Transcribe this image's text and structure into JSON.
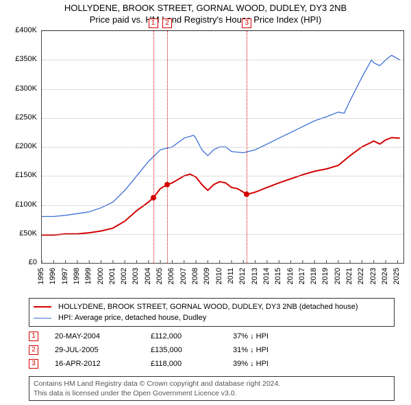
{
  "title": {
    "line1": "HOLLYDENE, BROOK STREET, GORNAL WOOD, DUDLEY, DY3 2NB",
    "line2": "Price paid vs. HM Land Registry's House Price Index (HPI)",
    "fontsize": 13,
    "color": "#000000"
  },
  "chart": {
    "type": "line",
    "background_color": "#ffffff",
    "border_color": "#444444",
    "grid_color": "#bbbbbb",
    "y": {
      "label_color": "#000000",
      "label_fontsize": 11,
      "ylim": [
        0,
        400000
      ],
      "ytick_step": 50000,
      "ticks": [
        "£0",
        "£50K",
        "£100K",
        "£150K",
        "£200K",
        "£250K",
        "£300K",
        "£350K",
        "£400K"
      ]
    },
    "x": {
      "label_color": "#000000",
      "label_fontsize": 11,
      "xlim": [
        1995,
        2025.5
      ],
      "ticks": [
        1995,
        1996,
        1997,
        1998,
        1999,
        2000,
        2001,
        2002,
        2003,
        2004,
        2005,
        2006,
        2007,
        2008,
        2009,
        2010,
        2011,
        2012,
        2013,
        2014,
        2015,
        2016,
        2017,
        2018,
        2019,
        2020,
        2021,
        2022,
        2023,
        2024,
        2025
      ]
    },
    "series": [
      {
        "name": "HOLLYDENE, BROOK STREET, GORNAL WOOD, DUDLEY, DY3 2NB (detached house)",
        "color": "#d40000",
        "line_width": 2.0,
        "data": [
          [
            1995.0,
            48000
          ],
          [
            1996.0,
            48000
          ],
          [
            1997.0,
            50000
          ],
          [
            1998.0,
            50000
          ],
          [
            1999.0,
            52000
          ],
          [
            2000.0,
            55000
          ],
          [
            2001.0,
            60000
          ],
          [
            2002.0,
            72000
          ],
          [
            2003.0,
            90000
          ],
          [
            2004.0,
            105000
          ],
          [
            2004.39,
            112000
          ],
          [
            2005.0,
            128000
          ],
          [
            2005.58,
            135000
          ],
          [
            2006.0,
            138000
          ],
          [
            2007.0,
            150000
          ],
          [
            2007.5,
            153000
          ],
          [
            2008.0,
            148000
          ],
          [
            2008.5,
            135000
          ],
          [
            2009.0,
            125000
          ],
          [
            2009.5,
            135000
          ],
          [
            2010.0,
            140000
          ],
          [
            2010.5,
            138000
          ],
          [
            2011.0,
            130000
          ],
          [
            2011.5,
            128000
          ],
          [
            2012.0,
            122000
          ],
          [
            2012.29,
            118000
          ],
          [
            2013.0,
            122000
          ],
          [
            2014.0,
            130000
          ],
          [
            2015.0,
            138000
          ],
          [
            2016.0,
            145000
          ],
          [
            2017.0,
            152000
          ],
          [
            2018.0,
            158000
          ],
          [
            2019.0,
            162000
          ],
          [
            2020.0,
            168000
          ],
          [
            2021.0,
            185000
          ],
          [
            2022.0,
            200000
          ],
          [
            2023.0,
            210000
          ],
          [
            2023.5,
            205000
          ],
          [
            2024.0,
            212000
          ],
          [
            2024.5,
            216000
          ],
          [
            2025.2,
            215000
          ]
        ]
      },
      {
        "name": "HPI: Average price, detached house, Dudley",
        "color": "#3b6fd6",
        "line_width": 1.3,
        "data": [
          [
            1995.0,
            80000
          ],
          [
            1996.0,
            80000
          ],
          [
            1997.0,
            82000
          ],
          [
            1998.0,
            85000
          ],
          [
            1999.0,
            88000
          ],
          [
            2000.0,
            95000
          ],
          [
            2001.0,
            105000
          ],
          [
            2002.0,
            125000
          ],
          [
            2003.0,
            150000
          ],
          [
            2004.0,
            175000
          ],
          [
            2005.0,
            195000
          ],
          [
            2006.0,
            200000
          ],
          [
            2007.0,
            215000
          ],
          [
            2007.8,
            220000
          ],
          [
            2008.0,
            215000
          ],
          [
            2008.5,
            195000
          ],
          [
            2009.0,
            185000
          ],
          [
            2009.5,
            195000
          ],
          [
            2010.0,
            200000
          ],
          [
            2010.5,
            200000
          ],
          [
            2011.0,
            192000
          ],
          [
            2012.0,
            190000
          ],
          [
            2013.0,
            195000
          ],
          [
            2014.0,
            205000
          ],
          [
            2015.0,
            215000
          ],
          [
            2016.0,
            225000
          ],
          [
            2017.0,
            235000
          ],
          [
            2018.0,
            245000
          ],
          [
            2019.0,
            252000
          ],
          [
            2020.0,
            260000
          ],
          [
            2020.5,
            258000
          ],
          [
            2021.0,
            280000
          ],
          [
            2022.0,
            320000
          ],
          [
            2022.8,
            350000
          ],
          [
            2023.0,
            345000
          ],
          [
            2023.5,
            340000
          ],
          [
            2024.0,
            350000
          ],
          [
            2024.5,
            358000
          ],
          [
            2025.2,
            350000
          ]
        ]
      }
    ],
    "sales_markers": [
      {
        "idx": "1",
        "x": 2004.39,
        "y": 112000,
        "box_y": -18,
        "color": "#d40000"
      },
      {
        "idx": "2",
        "x": 2005.58,
        "y": 135000,
        "box_y": -18,
        "color": "#d40000"
      },
      {
        "idx": "3",
        "x": 2012.29,
        "y": 118000,
        "box_y": -18,
        "color": "#d40000"
      }
    ]
  },
  "legend": {
    "border_color": "#333333",
    "fontsize": 11,
    "items": [
      {
        "color": "#d40000",
        "width": 2.0,
        "label": "HOLLYDENE, BROOK STREET, GORNAL WOOD, DUDLEY, DY3 2NB (detached house)"
      },
      {
        "color": "#3b6fd6",
        "width": 1.3,
        "label": "HPI: Average price, detached house, Dudley"
      }
    ]
  },
  "sales_table": {
    "marker_color": "#d40000",
    "fontsize": 11,
    "rows": [
      {
        "idx": "1",
        "date": "20-MAY-2004",
        "price": "£112,000",
        "pct": "37% ↓ HPI"
      },
      {
        "idx": "2",
        "date": "29-JUL-2005",
        "price": "£135,000",
        "pct": "31% ↓ HPI"
      },
      {
        "idx": "3",
        "date": "16-APR-2012",
        "price": "£118,000",
        "pct": "39% ↓ HPI"
      }
    ]
  },
  "footer": {
    "border_color": "#333333",
    "color": "#555555",
    "fontsize": 10.5,
    "line1": "Contains HM Land Registry data © Crown copyright and database right 2024.",
    "line2": "This data is licensed under the Open Government Licence v3.0."
  }
}
